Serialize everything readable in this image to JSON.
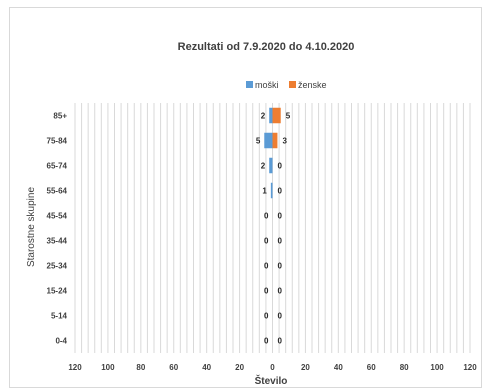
{
  "chart_data": {
    "type": "bar",
    "orientation": "horizontal",
    "layout": "population-pyramid",
    "title": "Rezultati od 7.9.2020 do 4.10.2020",
    "xlabel": "Število",
    "ylabel": "Starostne skupine",
    "categories": [
      "0-4",
      "5-14",
      "15-24",
      "25-34",
      "35-44",
      "45-54",
      "55-64",
      "65-74",
      "75-84",
      "85+"
    ],
    "series": [
      {
        "name": "moški",
        "color": "#5b9bd5",
        "side": "left",
        "values": [
          0,
          0,
          0,
          0,
          0,
          0,
          1,
          2,
          5,
          2
        ]
      },
      {
        "name": "ženske",
        "color": "#ed7d31",
        "side": "right",
        "values": [
          0,
          0,
          0,
          0,
          0,
          0,
          0,
          0,
          3,
          5
        ]
      }
    ],
    "xlim": [
      -120,
      120
    ],
    "x_tick_step": 20,
    "x_tick_labels": [
      "120",
      "100",
      "80",
      "60",
      "40",
      "20",
      "0",
      "20",
      "40",
      "60",
      "80",
      "100",
      "120"
    ],
    "minor_grid_step": 4,
    "grid": true,
    "legend_position": "top"
  }
}
